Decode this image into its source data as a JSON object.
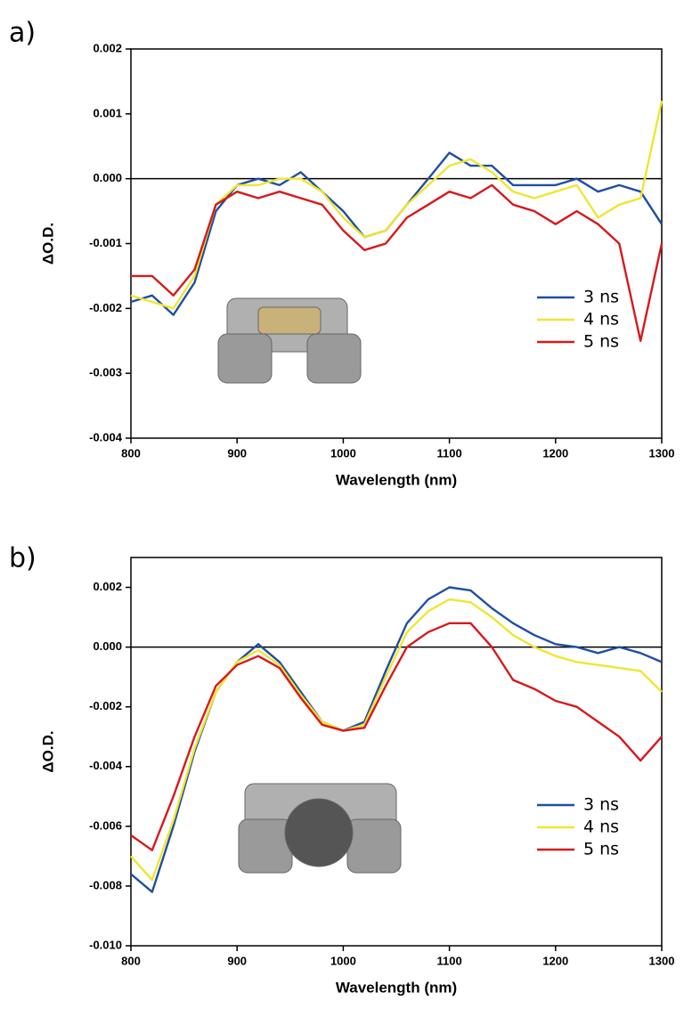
{
  "chart_data": [
    {
      "type": "line",
      "label": "a)",
      "x_label": "Wavelength (nm)",
      "y_label": "ΔO.D.",
      "x": [
        800,
        820,
        840,
        860,
        880,
        900,
        920,
        940,
        960,
        980,
        1000,
        1020,
        1040,
        1060,
        1080,
        1100,
        1120,
        1140,
        1160,
        1180,
        1200,
        1220,
        1240,
        1260,
        1280,
        1300
      ],
      "series": [
        {
          "name": "3 ns",
          "color": "#1f4fa0",
          "values": [
            -0.0019,
            -0.0018,
            -0.0021,
            -0.0016,
            -0.0005,
            -0.0001,
            0.0,
            -0.0001,
            0.0001,
            -0.0002,
            -0.0005,
            -0.0009,
            -0.0008,
            -0.0004,
            0.0,
            0.0004,
            0.0002,
            0.0002,
            -0.0001,
            -0.0001,
            -0.0001,
            0.0,
            -0.0002,
            -0.0001,
            -0.0002,
            -0.0007
          ]
        },
        {
          "name": "4 ns",
          "color": "#f0e631",
          "values": [
            -0.0018,
            -0.0019,
            -0.002,
            -0.0015,
            -0.0004,
            -0.0001,
            -0.0001,
            0.0,
            0.0,
            -0.0002,
            -0.0006,
            -0.0009,
            -0.0008,
            -0.0004,
            -0.0001,
            0.0002,
            0.0003,
            0.0001,
            -0.0002,
            -0.0003,
            -0.0002,
            -0.0001,
            -0.0006,
            -0.0004,
            -0.0003,
            0.0012
          ]
        },
        {
          "name": "5 ns",
          "color": "#d7191c",
          "values": [
            -0.0015,
            -0.0015,
            -0.0018,
            -0.0014,
            -0.0004,
            -0.0002,
            -0.0003,
            -0.0002,
            -0.0003,
            -0.0004,
            -0.0008,
            -0.0011,
            -0.001,
            -0.0006,
            -0.0004,
            -0.0002,
            -0.0003,
            -0.0001,
            -0.0004,
            -0.0005,
            -0.0007,
            -0.0005,
            -0.0007,
            -0.001,
            -0.0025,
            -0.001
          ]
        }
      ],
      "xlim": [
        800,
        1300
      ],
      "xticks": [
        800,
        900,
        1000,
        1100,
        1200,
        1300
      ],
      "ylim": [
        -0.004,
        0.002
      ],
      "yticks": [
        -0.004,
        -0.003,
        -0.002,
        -0.001,
        {
          "value": 0,
          "label": "0.000"
        },
        0.001,
        0.002
      ],
      "legend": "lower right"
    },
    {
      "type": "line",
      "label": "b)",
      "x_label": "Wavelength (nm)",
      "y_label": "ΔO.D.",
      "x": [
        800,
        820,
        840,
        860,
        880,
        900,
        920,
        940,
        960,
        980,
        1000,
        1020,
        1040,
        1060,
        1080,
        1100,
        1120,
        1140,
        1160,
        1180,
        1200,
        1220,
        1240,
        1260,
        1280,
        1300
      ],
      "series": [
        {
          "name": "3 ns",
          "color": "#1f4fa0",
          "values": [
            -0.0076,
            -0.0082,
            -0.006,
            -0.0035,
            -0.0015,
            -0.0005,
            0.0001,
            -0.0005,
            -0.0015,
            -0.0025,
            -0.0028,
            -0.0025,
            -0.0008,
            0.0008,
            0.0016,
            0.002,
            0.0019,
            0.0013,
            0.0008,
            0.0004,
            0.0001,
            0.0,
            -0.0002,
            0.0,
            -0.0002,
            -0.0005
          ]
        },
        {
          "name": "4 ns",
          "color": "#f0e631",
          "values": [
            -0.007,
            -0.0078,
            -0.0058,
            -0.0034,
            -0.0015,
            -0.0005,
            -0.0001,
            -0.0006,
            -0.0016,
            -0.0025,
            -0.0028,
            -0.0026,
            -0.001,
            0.0005,
            0.0012,
            0.0016,
            0.0015,
            0.001,
            0.0004,
            0.0,
            -0.0003,
            -0.0005,
            -0.0006,
            -0.0007,
            -0.0008,
            -0.0015
          ]
        },
        {
          "name": "5 ns",
          "color": "#d7191c",
          "values": [
            -0.0063,
            -0.0068,
            -0.005,
            -0.003,
            -0.0013,
            -0.0006,
            -0.0003,
            -0.0007,
            -0.0017,
            -0.0026,
            -0.0028,
            -0.0027,
            -0.0013,
            0.0,
            0.0005,
            0.0008,
            0.0008,
            0.0,
            -0.0011,
            -0.0014,
            -0.0018,
            -0.002,
            -0.0025,
            -0.003,
            -0.0038,
            -0.003
          ]
        }
      ],
      "xlim": [
        800,
        1300
      ],
      "xticks": [
        800,
        900,
        1000,
        1100,
        1200,
        1300
      ],
      "ylim": [
        -0.01,
        0.003
      ],
      "yticks": [
        {
          "value": -0.01,
          "label": "-0.010"
        },
        -0.008,
        -0.006,
        -0.004,
        -0.002,
        {
          "value": 0,
          "label": "0.000"
        },
        0.002
      ],
      "legend": "lower right"
    }
  ]
}
